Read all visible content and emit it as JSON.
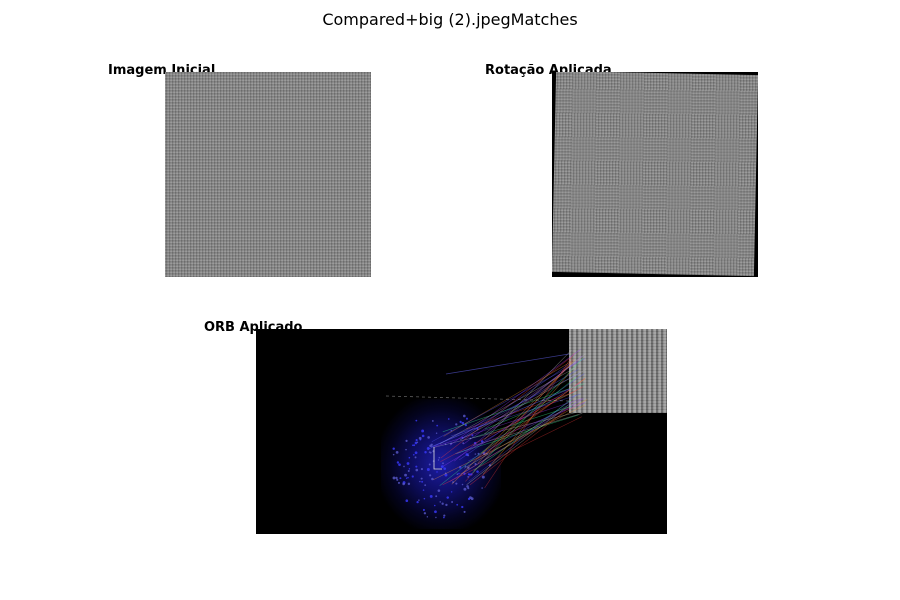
{
  "figure": {
    "title": "Compared+big (2).jpegMatches"
  },
  "panels": {
    "initial": {
      "title": "Imagem Inicial"
    },
    "rotated": {
      "title": "Rotação Aplicada"
    },
    "orb": {
      "title": "ORB Aplicado"
    }
  },
  "colors": {
    "background": "#ffffff",
    "image_gray": "#888888",
    "orb_background": "#000000",
    "keypoint_blue": "#1e1eaa",
    "match_line_colors": [
      "#ff3b3b",
      "#c0c0c0",
      "#5a5aff",
      "#ff9a3b",
      "#9a3bff",
      "#3bff9a"
    ]
  }
}
